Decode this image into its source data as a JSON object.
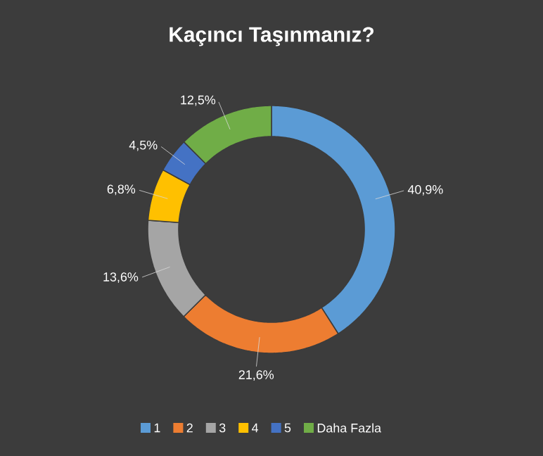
{
  "chart_data": {
    "type": "donut",
    "title": "Kaçıncı Taşınmanız?",
    "categories": [
      "1",
      "2",
      "3",
      "4",
      "5",
      "Daha Fazla"
    ],
    "values": [
      40.9,
      21.6,
      13.6,
      6.8,
      4.5,
      12.5
    ],
    "colors": [
      "#5b9bd5",
      "#ed7d31",
      "#a5a5a5",
      "#ffc000",
      "#4472c4",
      "#70ad47"
    ],
    "value_labels": [
      "40,9%",
      "21,6%",
      "13,6%",
      "6,8%",
      "4,5%",
      "12,5%"
    ],
    "legend": "bottom"
  }
}
